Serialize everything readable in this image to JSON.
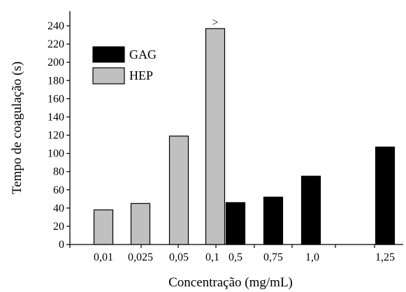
{
  "chart_data": {
    "type": "bar",
    "xlabel": "Concentração (mg/mL)",
    "ylabel": "Tempo de coagulação (s)",
    "ylim": [
      0,
      240
    ],
    "yticks": [
      "0",
      "20",
      "40",
      "60",
      "80",
      "100",
      "120",
      "140",
      "160",
      "180",
      "200",
      "220",
      "240"
    ],
    "categories": [
      "0,01",
      "0,025",
      "0,05",
      "0,1",
      "0,5",
      "0,75",
      "1,0",
      "1,25"
    ],
    "series": [
      {
        "name": "GAG",
        "color": "#000000",
        "values": [
          null,
          null,
          null,
          null,
          46,
          52,
          75,
          107
        ]
      },
      {
        "name": "HEP",
        "color": "#c0c0c0",
        "values": [
          38,
          45,
          119,
          237,
          null,
          null,
          null,
          null
        ]
      }
    ],
    "annotations": [
      {
        "category": "0,1",
        "text": ">"
      }
    ],
    "legend": {
      "position": "top-left",
      "order": [
        "GAG",
        "HEP"
      ]
    },
    "grid": false
  }
}
